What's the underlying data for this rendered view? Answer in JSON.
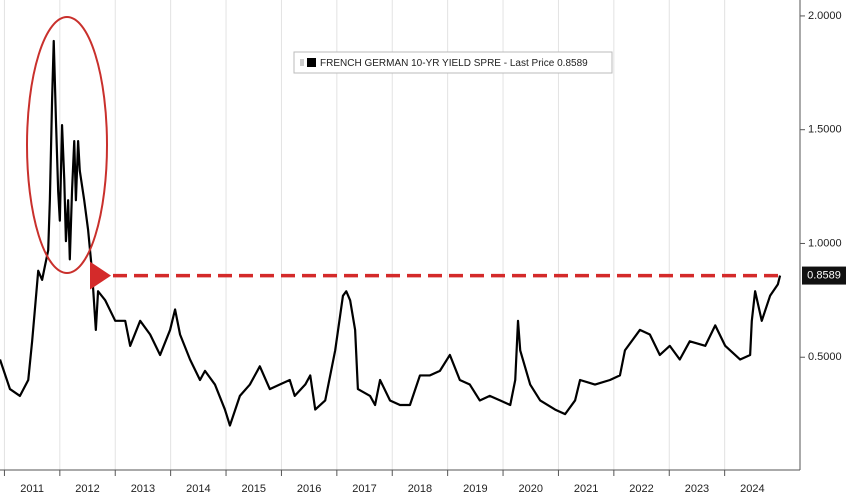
{
  "chart_data": {
    "type": "line",
    "legend_label": "- Last Price",
    "series": [
      {
        "name": "FRENCH GERMAN 10-YR YIELD SPRE",
        "color": "#000000",
        "x": [
          2010.92,
          2011.1,
          2011.28,
          2011.43,
          2011.5,
          2011.55,
          2011.61,
          2011.68,
          2011.73,
          2011.79,
          2011.82,
          2011.86,
          2011.89,
          2011.93,
          2011.97,
          2012.0,
          2012.04,
          2012.08,
          2012.11,
          2012.15,
          2012.18,
          2012.22,
          2012.26,
          2012.29,
          2012.33,
          2012.36,
          2012.44,
          2012.51,
          2012.58,
          2012.65,
          2012.69,
          2012.82,
          2013.0,
          2013.18,
          2013.27,
          2013.45,
          2013.63,
          2013.81,
          2013.99,
          2014.08,
          2014.17,
          2014.35,
          2014.53,
          2014.62,
          2014.8,
          2014.98,
          2015.07,
          2015.25,
          2015.43,
          2015.61,
          2015.79,
          2015.97,
          2016.15,
          2016.24,
          2016.43,
          2016.52,
          2016.61,
          2016.79,
          2016.97,
          2017.11,
          2017.17,
          2017.24,
          2017.33,
          2017.38,
          2017.6,
          2017.69,
          2017.78,
          2017.96,
          2018.14,
          2018.32,
          2018.5,
          2018.68,
          2018.86,
          2019.04,
          2019.22,
          2019.4,
          2019.58,
          2019.76,
          2019.95,
          2020.13,
          2020.22,
          2020.27,
          2020.31,
          2020.49,
          2020.67,
          2020.94,
          2021.12,
          2021.3,
          2021.39,
          2021.66,
          2021.93,
          2022.11,
          2022.2,
          2022.47,
          2022.65,
          2022.83,
          2023.01,
          2023.19,
          2023.37,
          2023.65,
          2023.83,
          2024.01,
          2024.28,
          2024.46,
          2024.49,
          2024.55,
          2024.67,
          2024.82,
          2024.96,
          2025.0
        ],
        "values": [
          0.49,
          0.36,
          0.33,
          0.4,
          0.57,
          0.71,
          0.88,
          0.84,
          0.9,
          0.97,
          1.19,
          1.63,
          1.89,
          1.54,
          1.23,
          1.1,
          1.52,
          1.28,
          1.01,
          1.19,
          0.93,
          1.23,
          1.45,
          1.19,
          1.45,
          1.32,
          1.19,
          1.06,
          0.88,
          0.62,
          0.79,
          0.75,
          0.66,
          0.66,
          0.55,
          0.66,
          0.6,
          0.51,
          0.62,
          0.71,
          0.6,
          0.49,
          0.4,
          0.44,
          0.38,
          0.27,
          0.2,
          0.33,
          0.38,
          0.46,
          0.36,
          0.38,
          0.4,
          0.33,
          0.38,
          0.42,
          0.27,
          0.31,
          0.53,
          0.77,
          0.79,
          0.75,
          0.62,
          0.36,
          0.33,
          0.29,
          0.4,
          0.31,
          0.29,
          0.29,
          0.42,
          0.42,
          0.44,
          0.51,
          0.4,
          0.38,
          0.31,
          0.33,
          0.31,
          0.29,
          0.4,
          0.66,
          0.53,
          0.38,
          0.31,
          0.27,
          0.25,
          0.31,
          0.4,
          0.38,
          0.4,
          0.42,
          0.53,
          0.62,
          0.6,
          0.51,
          0.55,
          0.49,
          0.57,
          0.55,
          0.64,
          0.55,
          0.49,
          0.51,
          0.66,
          0.79,
          0.66,
          0.77,
          0.82,
          0.8589
        ]
      }
    ],
    "xlim": [
      2010.92,
      2025.36
    ],
    "xticks": [
      {
        "value": 2011,
        "label": "2011"
      },
      {
        "value": 2012,
        "label": "2012"
      },
      {
        "value": 2013,
        "label": "2013"
      },
      {
        "value": 2014,
        "label": "2014"
      },
      {
        "value": 2015,
        "label": "2015"
      },
      {
        "value": 2016,
        "label": "2016"
      },
      {
        "value": 2017,
        "label": "2017"
      },
      {
        "value": 2018,
        "label": "2018"
      },
      {
        "value": 2019,
        "label": "2019"
      },
      {
        "value": 2020,
        "label": "2020"
      },
      {
        "value": 2021,
        "label": "2021"
      },
      {
        "value": 2022,
        "label": "2022"
      },
      {
        "value": 2023,
        "label": "2023"
      },
      {
        "value": 2024,
        "label": "2024"
      }
    ],
    "ylim": [
      0,
      2.07
    ],
    "yticks": [
      {
        "value": 0.5,
        "label": "0.5000"
      },
      {
        "value": 1,
        "label": "1.0000"
      },
      {
        "value": 1.5,
        "label": "1.5000"
      },
      {
        "value": 2,
        "label": "2.0000"
      }
    ],
    "grid": true
  }
}
